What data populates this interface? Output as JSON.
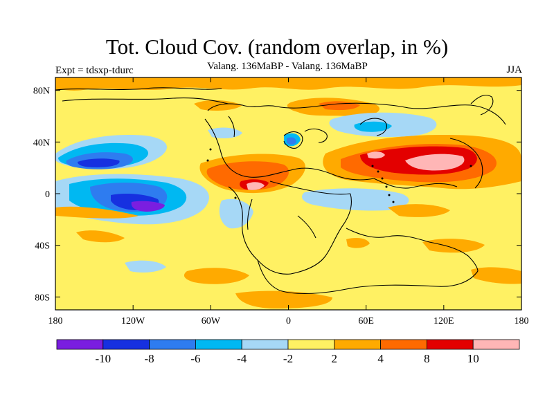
{
  "title": "Tot. Cloud Cov. (random overlap, in %)",
  "subtitle": "Valang. 136MaBP - Valang.  136MaBP",
  "left_label": "Expt = tdsxp-tdurc",
  "right_label": "JJA",
  "map": {
    "lon_range": [
      -180,
      180
    ],
    "lat_range": [
      -90,
      90
    ],
    "x_ticks": [
      {
        "value": -180,
        "label": "180"
      },
      {
        "value": -120,
        "label": "120W"
      },
      {
        "value": -60,
        "label": "60W"
      },
      {
        "value": 0,
        "label": "0"
      },
      {
        "value": 60,
        "label": "60E"
      },
      {
        "value": 120,
        "label": "120E"
      },
      {
        "value": 180,
        "label": "180"
      }
    ],
    "y_ticks": [
      {
        "value": 80,
        "label": "80N"
      },
      {
        "value": 40,
        "label": "40N"
      },
      {
        "value": 0,
        "label": "0"
      },
      {
        "value": -40,
        "label": "40S"
      },
      {
        "value": -80,
        "label": "80S"
      }
    ],
    "background_level": "-2 to 2",
    "anomaly_regions": [
      {
        "level": 4,
        "lon": [
          -180,
          180
        ],
        "lat": [
          78,
          88
        ],
        "shape": "band"
      },
      {
        "level": 4,
        "lon": [
          -170,
          -100
        ],
        "lat": [
          -8,
          -4
        ]
      },
      {
        "level": 4,
        "lon": [
          -80,
          -20
        ],
        "lat": [
          5,
          25
        ]
      },
      {
        "level": 8,
        "lon": [
          -60,
          -20
        ],
        "lat": [
          8,
          20
        ]
      },
      {
        "level": 10,
        "lon": [
          -30,
          -15
        ],
        "lat": [
          4,
          10
        ]
      },
      {
        "level": 4,
        "lon": [
          40,
          180
        ],
        "lat": [
          10,
          40
        ]
      },
      {
        "level": 8,
        "lon": [
          50,
          160
        ],
        "lat": [
          17,
          33
        ]
      },
      {
        "level": 10,
        "lon": [
          90,
          140
        ],
        "lat": [
          20,
          30
        ]
      },
      {
        "level": 4,
        "lon": [
          -60,
          -10
        ],
        "lat": [
          -75,
          -60
        ]
      },
      {
        "level": 4,
        "lon": [
          -30,
          30
        ],
        "lat": [
          -88,
          -78
        ]
      },
      {
        "level": 4,
        "lon": [
          110,
          170
        ],
        "lat": [
          -50,
          -35
        ]
      },
      {
        "level": -4,
        "lon": [
          -170,
          -110
        ],
        "lat": [
          15,
          35
        ]
      },
      {
        "level": -6,
        "lon": [
          -160,
          -130
        ],
        "lat": [
          20,
          30
        ]
      },
      {
        "level": -4,
        "lon": [
          -160,
          -100
        ],
        "lat": [
          -12,
          12
        ]
      },
      {
        "level": -8,
        "lon": [
          -140,
          -100
        ],
        "lat": [
          -6,
          4
        ]
      },
      {
        "level": -10,
        "lon": [
          -125,
          -100
        ],
        "lat": [
          -4,
          0
        ]
      },
      {
        "level": -4,
        "lon": [
          -60,
          -30
        ],
        "lat": [
          -30,
          -10
        ]
      },
      {
        "level": -4,
        "lon": [
          30,
          90
        ],
        "lat": [
          -5,
          5
        ]
      },
      {
        "level": -4,
        "lon": [
          50,
          80
        ],
        "lat": [
          48,
          62
        ]
      },
      {
        "level": -6,
        "lon": [
          0,
          10
        ],
        "lat": [
          35,
          45
        ]
      }
    ]
  },
  "colorbar": {
    "colors": [
      "#7a1ee0",
      "#1630e0",
      "#2e7cf0",
      "#00b8f2",
      "#a6d8f6",
      "#fff163",
      "#ffaa00",
      "#ff6a00",
      "#e30000",
      "#ffb6b6"
    ],
    "labels": [
      "-10",
      "-8",
      "-6",
      "-4",
      "-2",
      "2",
      "4",
      "8",
      "10"
    ]
  },
  "colors": {
    "levels": {
      "-10": "#7a1ee0",
      "-8": "#1630e0",
      "-6": "#2e7cf0",
      "-4": "#00b8f2",
      "-2": "#a6d8f6",
      "2": "#fff163",
      "4": "#ffaa00",
      "8": "#ff6a00",
      "10": "#e30000",
      "12": "#ffb6b6"
    }
  }
}
